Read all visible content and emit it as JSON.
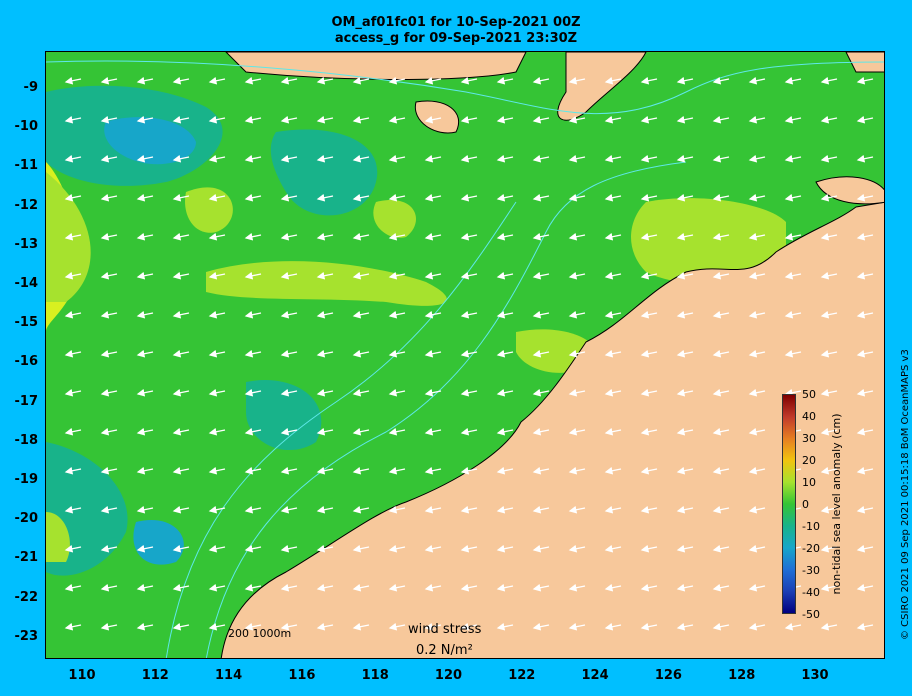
{
  "title_line1": "OM_af01fc01 for 10-Sep-2021 00Z",
  "title_line2": "access_g for 09-Sep-2021 23:30Z",
  "y_ticks": [
    "-9",
    "-10",
    "-11",
    "-12",
    "-13",
    "-14",
    "-15",
    "-16",
    "-17",
    "-18",
    "-19",
    "-20",
    "-21",
    "-22",
    "-23"
  ],
  "x_ticks": [
    "110",
    "112",
    "114",
    "116",
    "118",
    "120",
    "122",
    "124",
    "126",
    "128",
    "130"
  ],
  "colorbar": {
    "label": "non-tidal sea level anomaly (cm)",
    "ticks": [
      "50",
      "40",
      "30",
      "20",
      "10",
      "0",
      "-10",
      "-20",
      "-30",
      "-40",
      "-50"
    ],
    "colors": [
      "#7f0000",
      "#c0392b",
      "#e67e22",
      "#f1c40f",
      "#a6e22e",
      "#35c435",
      "#18b38a",
      "#17a6c9",
      "#1f6fd6",
      "#1b3fb5",
      "#000080"
    ]
  },
  "legend": {
    "wind_stress": "wind stress",
    "arrow_scale": "0.2 N/m²",
    "depth_contours": "200  1000m"
  },
  "credit": "© CSIRO 2021  09 Sep 2021 00:15:18 BoM OceanMAPS v3",
  "colors": {
    "background": "#00bfff",
    "land": "#f7c89b",
    "ocean_base": "#35c435",
    "contour": "#5ee8e8"
  }
}
